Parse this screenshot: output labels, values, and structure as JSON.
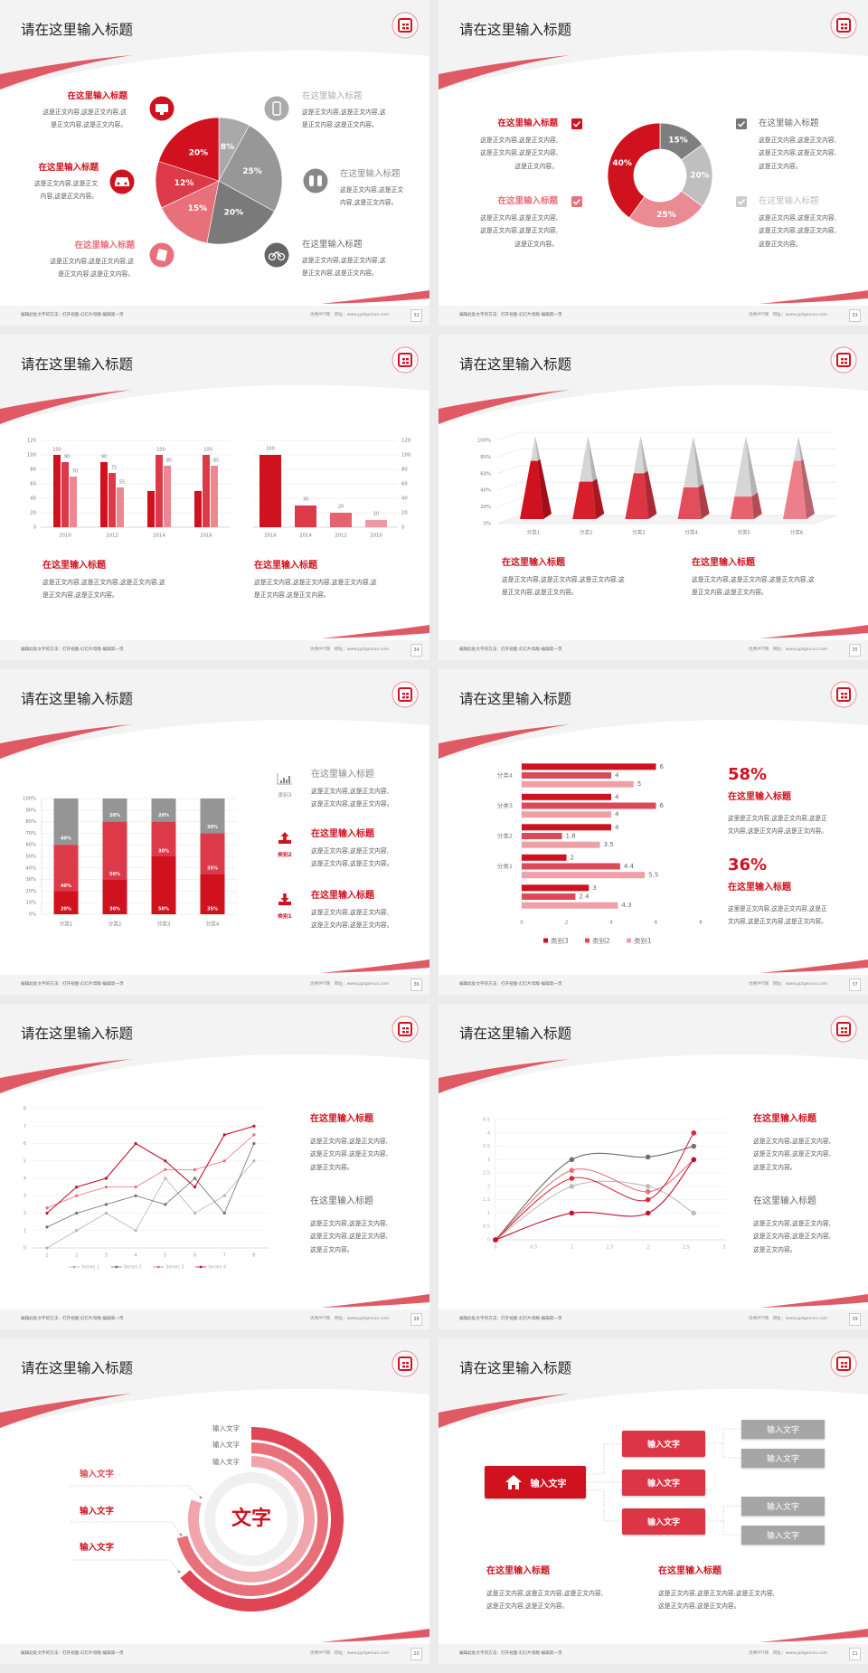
{
  "colors": {
    "red": "#d0121f",
    "red2": "#dc3545",
    "pink": "#e8707a",
    "light_pink": "#f0a0a8",
    "gray_dark": "#7a7a7a",
    "gray": "#a6a6a6",
    "gray_light": "#c8c8c8",
    "swoosh": "#e05a66"
  },
  "common": {
    "footer_left": "编辑此处文字的方法：打开视图-幻灯片母版-编辑第一页",
    "footer_site": "优秀PPT网",
    "footer_url": "网址：www.pptgenius.com"
  },
  "slides": [
    {
      "title": "请在这里输入标题",
      "page_number": "32",
      "left_items": [
        {
          "title": "在这里输入标题",
          "icon": "monitor-icon",
          "lines": [
            "这是正文内容,这是正文内容,这",
            "是正文内容,这是正文内容。"
          ]
        },
        {
          "title": "在这里输入标题",
          "icon": "car-icon",
          "lines": [
            "这是正文内容,这是正文",
            "内容,这是正文内容。"
          ]
        },
        {
          "title": "在这里输入标题",
          "icon": "book-icon",
          "lines": [
            "这是正文内容,这是正文内容,这",
            "是正文内容,这是正文内容。"
          ]
        }
      ],
      "right_items": [
        {
          "title": "在这里输入标题",
          "icon": "phone-icon",
          "lines": [
            "这是正文内容,这是正文内容,这",
            "是正文内容,这是正文内容。"
          ]
        },
        {
          "title": "在这里输入标题",
          "icon": "binoculars-icon",
          "lines": [
            "这是正文内容,这是正文",
            "内容,这是正文内容。"
          ]
        },
        {
          "title": "在这里输入标题",
          "icon": "bicycle-icon",
          "lines": [
            "这是正文内容,这是正文内容,这",
            "是正文内容,这是正文内容。"
          ]
        }
      ]
    },
    {
      "title": "请在这里输入标题",
      "page_number": "33",
      "left_items": [
        {
          "title": "在这里输入标题",
          "icon": "checkbox-icon",
          "lines": [
            "这是正文内容,这是正文内容,",
            "这是正文内容,这是正文内容,",
            "这是正文内容。"
          ]
        },
        {
          "title": "在这里输入标题",
          "icon": "checkbox-icon",
          "lines": [
            "这是正文内容,这是正文内容,",
            "这是正文内容,这是正文内容,",
            "这是正文内容。"
          ]
        }
      ],
      "right_items": [
        {
          "title": "在这里输入标题",
          "icon": "checkbox-icon",
          "lines": [
            "这是正文内容,这是正文内容,",
            "这是正文内容,这是正文内容,",
            "这是正文内容。"
          ]
        },
        {
          "title": "在这里输入标题",
          "icon": "checkbox-icon",
          "lines": [
            "这是正文内容,这是正文内容,",
            "这是正文内容,这是正文内容,",
            "这是正文内容。"
          ]
        }
      ]
    },
    {
      "title": "请在这里输入标题",
      "page_number": "34",
      "items": [
        {
          "title": "在这里输入标题",
          "lines": [
            "这是正文内容,这是正文内容,这是正文内容,这",
            "是正文内容,这是正文内容。"
          ]
        },
        {
          "title": "在这里输入标题",
          "lines": [
            "这是正文内容,这是正文内容,这是正文内容,这",
            "是正文内容,这是正文内容。"
          ]
        }
      ]
    },
    {
      "title": "请在这里输入标题",
      "page_number": "35",
      "items": [
        {
          "title": "在这里输入标题",
          "lines": [
            "这是正文内容,这是正文内容,这是正文内容,这",
            "是正文内容,这是正文内容。"
          ]
        },
        {
          "title": "在这里输入标题",
          "lines": [
            "这是正文内容,这是正文内容,这是正文内容,这",
            "是正文内容,这是正文内容。"
          ]
        }
      ]
    },
    {
      "title": "请在这里输入标题",
      "page_number": "36",
      "items": [
        {
          "title": "在这里输入标题",
          "category": "类别3",
          "icon": "bar-chart-icon",
          "lines": [
            "这是正文内容,这是正文内容,",
            "这是正文内容,这是正文内容。"
          ]
        },
        {
          "title": "在这里输入标题",
          "category": "类别2",
          "icon": "upload-icon",
          "lines": [
            "这是正文内容,这是正文内容,",
            "这是正文内容,这是正文内容。"
          ]
        },
        {
          "title": "在这里输入标题",
          "category": "类别1",
          "icon": "download-icon",
          "lines": [
            "这是正文内容,这是正文内容,",
            "这是正文内容,这是正文内容。"
          ]
        }
      ]
    },
    {
      "title": "请在这里输入标题",
      "page_number": "37",
      "items": [
        {
          "stat": "58%",
          "title": "在这里输入标题",
          "lines": [
            "这里是正文内容,这是正文内容,这是正",
            "文内容,这是正文内容,这是正文内容。"
          ]
        },
        {
          "stat": "36%",
          "title": "在这里输入标题",
          "lines": [
            "这里是正文内容,这是正文内容,这是正",
            "文内容,这是正文内容,这是正文内容。"
          ]
        }
      ]
    },
    {
      "title": "请在这里输入标题",
      "page_number": "38",
      "items": [
        {
          "title": "在这里输入标题",
          "lines": [
            "这是正文内容,这是正文内容,",
            "这是正文内容,这是正文内容,",
            "这是正文内容。"
          ]
        },
        {
          "title": "在这里输入标题",
          "lines": [
            "这是正文内容,这是正文内容,",
            "这是正文内容,这是正文内容,",
            "这是正文内容。"
          ]
        }
      ]
    },
    {
      "title": "请在这里输入标题",
      "page_number": "39",
      "items": [
        {
          "title": "在这里输入标题",
          "lines": [
            "这是正文内容,这是正文内容,",
            "这是正文内容,这是正文内容,",
            "这是正文内容。"
          ]
        },
        {
          "title": "在这里输入标题",
          "lines": [
            "这是正文内容,这是正文内容,",
            "这是正文内容,这是正文内容,",
            "这是正文内容。"
          ]
        }
      ]
    },
    {
      "title": "请在这里输入标题",
      "page_number": "20",
      "center_text": "文字",
      "ring_labels": [
        "输入文字",
        "输入文字",
        "输入文字"
      ],
      "left_labels": [
        "输入文字",
        "输入文字",
        "输入文字"
      ]
    },
    {
      "title": "请在这里输入标题",
      "page_number": "21",
      "root": {
        "label": "输入文字",
        "icon": "home-icon"
      },
      "middle": [
        "输入文字",
        "输入文字",
        "输入文字"
      ],
      "leaves": [
        "输入文字",
        "输入文字",
        "输入文字",
        "输入文字"
      ],
      "items": [
        {
          "title": "在这里输入标题",
          "lines": [
            "这是正文内容,这是正文内容,这是正文内容,",
            "这是正文内容,这是正文内容。"
          ]
        },
        {
          "title": "在这里输入标题",
          "lines": [
            "这是正文内容,这是正文内容,这是正文内容,",
            "这是正文内容,这是正文内容。"
          ]
        }
      ]
    }
  ],
  "chart_data": [
    {
      "type": "pie",
      "labels": [
        "8%",
        "25%",
        "20%",
        "15%",
        "12%",
        "20%"
      ],
      "values": [
        8,
        25,
        20,
        15,
        12,
        20
      ],
      "colors": [
        "#a9a9a9",
        "#979797",
        "#7a7a7a",
        "#e8707a",
        "#dc3a48",
        "#d0121f"
      ]
    },
    {
      "type": "pie",
      "donut": true,
      "labels": [
        "15%",
        "20%",
        "25%",
        "40%"
      ],
      "values": [
        15,
        20,
        25,
        40
      ],
      "colors": [
        "#7f7f7f",
        "#bfbfbf",
        "#ea8a93",
        "#d0121f"
      ]
    },
    {
      "type": "bar",
      "categories": [
        "2010",
        "2012",
        "2014",
        "2016"
      ],
      "ylim": [
        0,
        120
      ],
      "yticks": [
        "0",
        "20",
        "40",
        "60",
        "80",
        "100",
        "120"
      ],
      "series": [
        {
          "values": [
            100,
            90,
            50,
            50
          ],
          "color": "#d0121f"
        },
        {
          "values": [
            90,
            75,
            100,
            100
          ],
          "color": "#dc3a48"
        },
        {
          "values": [
            70,
            55,
            85,
            85
          ],
          "color": "#ec8891"
        }
      ],
      "data_labels": [
        [
          "100",
          "90",
          "",
          ""
        ],
        [
          "90",
          "75",
          "100",
          "100"
        ],
        [
          "70",
          "55",
          "85",
          "85"
        ]
      ]
    },
    {
      "type": "bar",
      "categories": [
        "2016",
        "2014",
        "2012",
        "2010"
      ],
      "ylim": [
        0,
        120
      ],
      "y_axis": "right",
      "yticks": [
        "0",
        "20",
        "40",
        "60",
        "80",
        "100",
        "120"
      ],
      "values": [
        100,
        30,
        20,
        10
      ],
      "data_labels": [
        "100",
        "30",
        "20",
        "10"
      ],
      "colors": [
        "#d0121f",
        "#dc3a48",
        "#e6636e",
        "#ef9aa2"
      ]
    },
    {
      "type": "bar",
      "style": "3d-pyramid",
      "categories": [
        "分类1",
        "分类2",
        "分类3",
        "分类4",
        "分类5",
        "分类6"
      ],
      "values": [
        70,
        45,
        55,
        38,
        27,
        70
      ],
      "ylim": [
        0,
        100
      ],
      "yticks": [
        "0%",
        "20%",
        "40%",
        "60%",
        "80%",
        "100%"
      ],
      "colors": [
        "#d0121f",
        "#d81f2c",
        "#dc3545",
        "#e14f5c",
        "#e6636e",
        "#ec7f89"
      ]
    },
    {
      "type": "bar",
      "stacked": true,
      "categories": [
        "分类1",
        "分类2",
        "分类3",
        "分类4"
      ],
      "ylim": [
        0,
        100
      ],
      "yticks": [
        "0%",
        "10%",
        "20%",
        "30%",
        "40%",
        "50%",
        "60%",
        "70%",
        "80%",
        "90%",
        "100%"
      ],
      "series": [
        {
          "values": [
            20,
            30,
            50,
            35
          ],
          "labels": [
            "20%",
            "30%",
            "50%",
            "35%"
          ],
          "color": "#d0121f"
        },
        {
          "values": [
            40,
            50,
            30,
            35
          ],
          "labels": [
            "40%",
            "50%",
            "30%",
            "35%"
          ],
          "color": "#dc3a48"
        },
        {
          "values": [
            40,
            20,
            20,
            30
          ],
          "labels": [
            "40%",
            "20%",
            "20%",
            "30%"
          ],
          "color": "#959595"
        }
      ]
    },
    {
      "type": "bar",
      "orientation": "horizontal",
      "categories": [
        "分类4",
        "分类3",
        "分类2",
        "分类1",
        ""
      ],
      "xlim": [
        0,
        8
      ],
      "xticks": [
        "0",
        "2",
        "4",
        "6",
        "8"
      ],
      "legend": "bottom",
      "series": [
        {
          "name": "类别3",
          "values": [
            6,
            4,
            4,
            2,
            3
          ],
          "labels": [
            "6",
            "4",
            "4",
            "2",
            "3"
          ],
          "color": "#d0121f"
        },
        {
          "name": "类别2",
          "values": [
            4,
            6,
            1.8,
            4.4,
            2.4
          ],
          "labels": [
            "4",
            "6",
            "1.8",
            "4.4",
            "2.4"
          ],
          "color": "#dc4a58"
        },
        {
          "name": "类别1",
          "values": [
            5,
            4,
            3.5,
            5.5,
            4.3
          ],
          "labels": [
            "5",
            "4",
            "3.5",
            "5.5",
            "4.3"
          ],
          "color": "#efa0a7"
        }
      ]
    },
    {
      "type": "line",
      "x": [
        1,
        2,
        3,
        4,
        5,
        6,
        7,
        8
      ],
      "ylim": [
        0,
        8
      ],
      "grid": true,
      "legend": "bottom",
      "xticks": [
        "1",
        "2",
        "3",
        "4",
        "5",
        "6",
        "7",
        "8"
      ],
      "yticks": [
        "0",
        "1",
        "2",
        "3",
        "4",
        "5",
        "6",
        "7",
        "8"
      ],
      "series": [
        {
          "name": "Series 1",
          "values": [
            0,
            1,
            2,
            1,
            4,
            2,
            3,
            5
          ],
          "color": "#b5b5b5"
        },
        {
          "name": "Series 2",
          "values": [
            1.2,
            2,
            2.5,
            3,
            2.5,
            4,
            2,
            6
          ],
          "color": "#6f6f6f"
        },
        {
          "name": "Series 3",
          "values": [
            2.3,
            3,
            3.5,
            3.5,
            4.5,
            4.5,
            5,
            6.5
          ],
          "color": "#e8707a"
        },
        {
          "name": "Series 4",
          "values": [
            2,
            3.5,
            4,
            6,
            5,
            3.5,
            6.5,
            7
          ],
          "color": "#c8102e"
        }
      ]
    },
    {
      "type": "scatter",
      "smooth": true,
      "x": [
        0,
        1,
        2,
        2.6
      ],
      "xlim": [
        0,
        3
      ],
      "ylim": [
        0,
        4.5
      ],
      "grid": true,
      "xticks": [
        "0",
        "0.5",
        "1",
        "1.5",
        "2",
        "2.5",
        "3"
      ],
      "yticks": [
        "0",
        "0.5",
        "1",
        "1.5",
        "2",
        "2.5",
        "3",
        "3.5",
        "4",
        "4.5"
      ],
      "series": [
        {
          "values": [
            0,
            2,
            2,
            1
          ],
          "color": "#bdbdbd"
        },
        {
          "values": [
            0,
            3,
            3.1,
            3.5
          ],
          "color": "#6f6f6f"
        },
        {
          "values": [
            0,
            2.6,
            1.8,
            3
          ],
          "color": "#e8707a"
        },
        {
          "values": [
            0,
            2.3,
            1.5,
            4
          ],
          "color": "#d8293a"
        },
        {
          "values": [
            0,
            1,
            1,
            3
          ],
          "color": "#c8102e"
        }
      ]
    }
  ]
}
